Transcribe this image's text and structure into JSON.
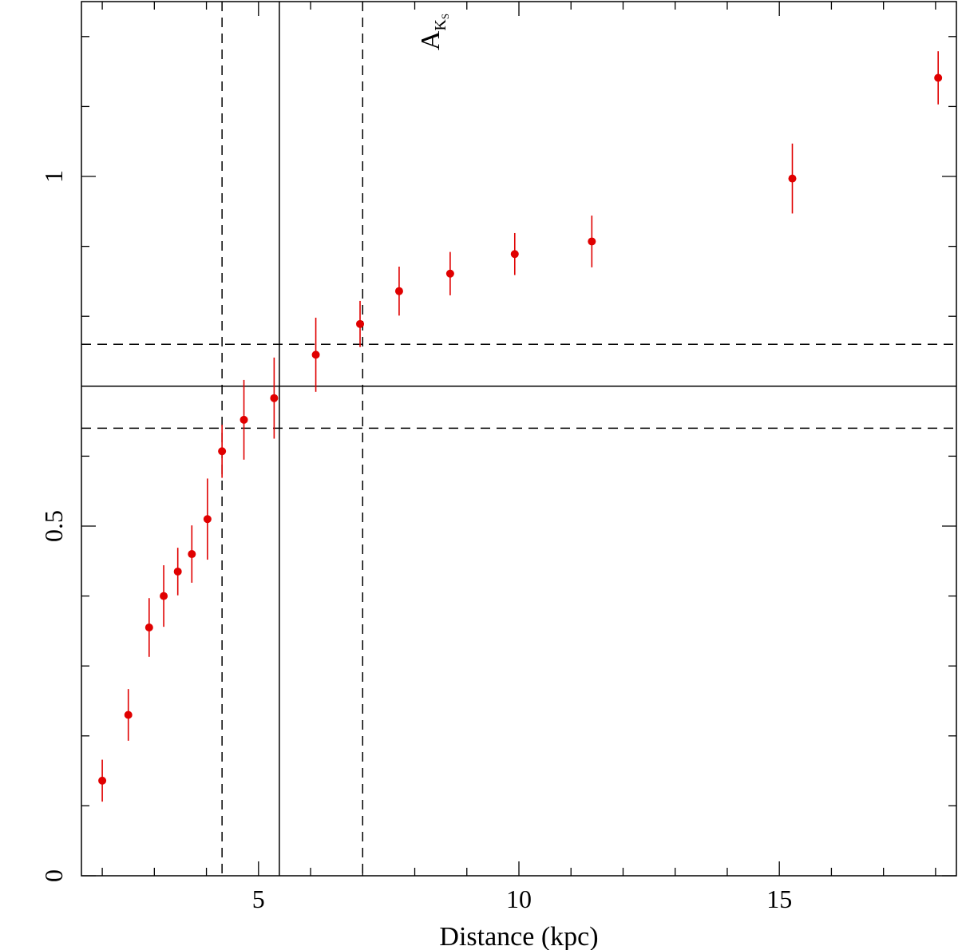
{
  "chart_data": {
    "type": "scatter",
    "title": "",
    "xlabel": "Distance (kpc)",
    "ylabel": {
      "main": "A",
      "sub1": "K",
      "sub2": "S"
    },
    "xlim": [
      1.6,
      18.4
    ],
    "ylim": [
      0,
      1.25
    ],
    "x_ticks": [
      5,
      10,
      15
    ],
    "y_ticks": [
      0,
      0.5,
      1
    ],
    "x_tick_labels": [
      "5",
      "10",
      "15"
    ],
    "y_tick_labels": [
      "0",
      "0.5",
      "1"
    ],
    "grid": false,
    "marker_color": "#e00000",
    "line_color": "#000000",
    "series": [
      {
        "points": [
          {
            "x": 2.0,
            "y": 0.136,
            "err": 0.03
          },
          {
            "x": 2.5,
            "y": 0.23,
            "err": 0.037
          },
          {
            "x": 2.9,
            "y": 0.355,
            "err": 0.042
          },
          {
            "x": 3.18,
            "y": 0.4,
            "err": 0.044
          },
          {
            "x": 3.45,
            "y": 0.435,
            "err": 0.034
          },
          {
            "x": 3.72,
            "y": 0.46,
            "err": 0.041
          },
          {
            "x": 4.02,
            "y": 0.51,
            "err": 0.058
          },
          {
            "x": 4.3,
            "y": 0.607,
            "err": 0.038
          },
          {
            "x": 4.72,
            "y": 0.652,
            "err": 0.057
          },
          {
            "x": 5.3,
            "y": 0.683,
            "err": 0.058
          },
          {
            "x": 6.1,
            "y": 0.745,
            "err": 0.053
          },
          {
            "x": 6.95,
            "y": 0.789,
            "err": 0.033
          },
          {
            "x": 7.7,
            "y": 0.836,
            "err": 0.035
          },
          {
            "x": 8.68,
            "y": 0.861,
            "err": 0.031
          },
          {
            "x": 9.92,
            "y": 0.889,
            "err": 0.03
          },
          {
            "x": 11.4,
            "y": 0.907,
            "err": 0.037
          },
          {
            "x": 15.25,
            "y": 0.997,
            "err": 0.05
          },
          {
            "x": 18.05,
            "y": 1.141,
            "err": 0.038
          }
        ]
      }
    ],
    "reference_lines": [
      {
        "orientation": "vertical",
        "value": 5.4,
        "style": "solid"
      },
      {
        "orientation": "vertical",
        "value": 4.3,
        "style": "dashed"
      },
      {
        "orientation": "vertical",
        "value": 7.0,
        "style": "dashed"
      },
      {
        "orientation": "horizontal",
        "value": 0.7,
        "style": "solid"
      },
      {
        "orientation": "horizontal",
        "value": 0.76,
        "style": "dashed"
      },
      {
        "orientation": "horizontal",
        "value": 0.64,
        "style": "dashed"
      }
    ]
  }
}
